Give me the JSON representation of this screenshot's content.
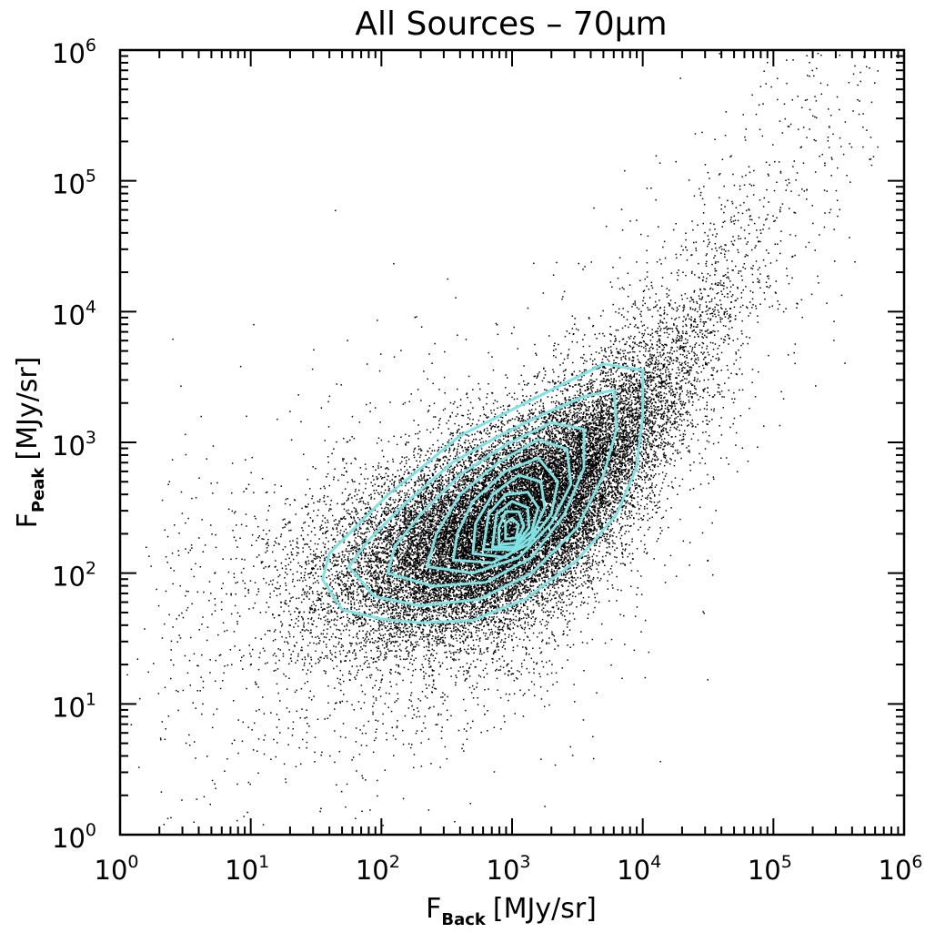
{
  "chart_data": {
    "type": "scatter",
    "title": "All Sources – 70μm",
    "xlabel": {
      "main": "F",
      "sub": "Back",
      "unit": "[MJy/sr]"
    },
    "ylabel": {
      "main": "F",
      "sub": "Peak",
      "unit": "[MJy/sr]"
    },
    "x_scale": "log",
    "y_scale": "log",
    "xlim": [
      1,
      1000000
    ],
    "ylim": [
      1,
      1000000
    ],
    "x_ticks": [
      {
        "base": "10",
        "exp": "0"
      },
      {
        "base": "10",
        "exp": "1"
      },
      {
        "base": "10",
        "exp": "2"
      },
      {
        "base": "10",
        "exp": "3"
      },
      {
        "base": "10",
        "exp": "4"
      },
      {
        "base": "10",
        "exp": "5"
      },
      {
        "base": "10",
        "exp": "6"
      }
    ],
    "y_ticks": [
      {
        "base": "10",
        "exp": "0"
      },
      {
        "base": "10",
        "exp": "1"
      },
      {
        "base": "10",
        "exp": "2"
      },
      {
        "base": "10",
        "exp": "3"
      },
      {
        "base": "10",
        "exp": "4"
      },
      {
        "base": "10",
        "exp": "5"
      },
      {
        "base": "10",
        "exp": "6"
      }
    ],
    "grid": false,
    "point_color": "#000000",
    "contour_color": "#7fe3e3",
    "contour_center": {
      "log_x": 3.0,
      "log_y": 2.3
    },
    "contours": [
      [
        [
          1.55,
          1.95
        ],
        [
          1.7,
          1.72
        ],
        [
          2.0,
          1.65
        ],
        [
          2.3,
          1.62
        ],
        [
          2.7,
          1.64
        ],
        [
          3.1,
          1.8
        ],
        [
          3.5,
          2.1
        ],
        [
          3.8,
          2.45
        ],
        [
          3.95,
          2.8
        ],
        [
          4.0,
          3.2
        ],
        [
          4.0,
          3.55
        ],
        [
          3.7,
          3.6
        ],
        [
          3.3,
          3.4
        ],
        [
          2.9,
          3.2
        ],
        [
          2.6,
          3.05
        ],
        [
          2.3,
          2.8
        ],
        [
          2.05,
          2.6
        ],
        [
          1.8,
          2.35
        ],
        [
          1.6,
          2.15
        ]
      ],
      [
        [
          1.75,
          2.05
        ],
        [
          1.95,
          1.82
        ],
        [
          2.3,
          1.75
        ],
        [
          2.75,
          1.8
        ],
        [
          3.15,
          2.0
        ],
        [
          3.5,
          2.35
        ],
        [
          3.7,
          2.75
        ],
        [
          3.8,
          3.1
        ],
        [
          3.78,
          3.4
        ],
        [
          3.55,
          3.35
        ],
        [
          3.25,
          3.22
        ],
        [
          2.9,
          3.05
        ],
        [
          2.55,
          2.85
        ],
        [
          2.2,
          2.55
        ],
        [
          1.9,
          2.25
        ]
      ],
      [
        [
          2.05,
          2.0
        ],
        [
          2.4,
          1.9
        ],
        [
          2.8,
          1.93
        ],
        [
          3.15,
          2.12
        ],
        [
          3.4,
          2.45
        ],
        [
          3.55,
          2.8
        ],
        [
          3.55,
          3.1
        ],
        [
          3.3,
          3.15
        ],
        [
          2.95,
          2.98
        ],
        [
          2.6,
          2.75
        ],
        [
          2.3,
          2.45
        ],
        [
          2.1,
          2.2
        ]
      ],
      [
        [
          2.35,
          2.05
        ],
        [
          2.7,
          2.0
        ],
        [
          3.05,
          2.12
        ],
        [
          3.3,
          2.38
        ],
        [
          3.45,
          2.68
        ],
        [
          3.42,
          2.95
        ],
        [
          3.2,
          3.02
        ],
        [
          2.9,
          2.85
        ],
        [
          2.6,
          2.6
        ],
        [
          2.42,
          2.3
        ]
      ],
      [
        [
          2.55,
          2.1
        ],
        [
          2.85,
          2.08
        ],
        [
          3.12,
          2.22
        ],
        [
          3.3,
          2.45
        ],
        [
          3.35,
          2.7
        ],
        [
          3.2,
          2.88
        ],
        [
          2.95,
          2.78
        ],
        [
          2.7,
          2.55
        ],
        [
          2.58,
          2.3
        ]
      ],
      [
        [
          2.7,
          2.15
        ],
        [
          2.95,
          2.12
        ],
        [
          3.15,
          2.28
        ],
        [
          3.25,
          2.5
        ],
        [
          3.22,
          2.7
        ],
        [
          3.05,
          2.75
        ],
        [
          2.85,
          2.6
        ],
        [
          2.72,
          2.38
        ]
      ],
      [
        [
          2.78,
          2.18
        ],
        [
          3.0,
          2.18
        ],
        [
          3.15,
          2.32
        ],
        [
          3.2,
          2.5
        ],
        [
          3.12,
          2.62
        ],
        [
          2.95,
          2.6
        ],
        [
          2.82,
          2.45
        ]
      ],
      [
        [
          2.85,
          2.2
        ],
        [
          3.02,
          2.2
        ],
        [
          3.13,
          2.35
        ],
        [
          3.12,
          2.5
        ],
        [
          3.0,
          2.55
        ],
        [
          2.88,
          2.45
        ]
      ],
      [
        [
          2.9,
          2.22
        ],
        [
          3.03,
          2.23
        ],
        [
          3.09,
          2.36
        ],
        [
          3.05,
          2.47
        ],
        [
          2.95,
          2.47
        ],
        [
          2.9,
          2.35
        ]
      ],
      [
        [
          2.95,
          2.26
        ],
        [
          3.03,
          2.27
        ],
        [
          3.05,
          2.37
        ],
        [
          3.0,
          2.42
        ],
        [
          2.95,
          2.38
        ]
      ]
    ]
  }
}
